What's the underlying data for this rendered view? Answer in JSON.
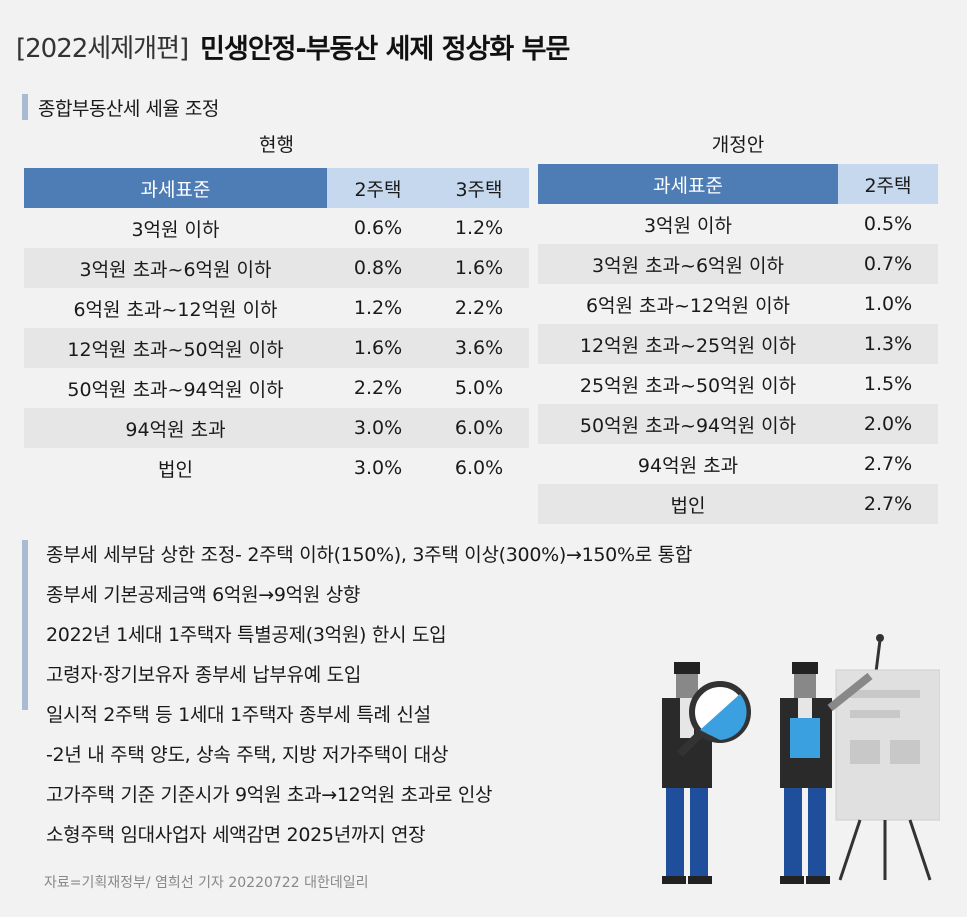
{
  "header": {
    "tag": "[2022세제개편]",
    "title": "민생안정-부동산 세제 정상화 부문"
  },
  "section": {
    "label": "종합부동산세 세율 조정"
  },
  "current_table": {
    "caption": "현행",
    "headers": [
      "과세표준",
      "2주택",
      "3주택"
    ],
    "rows": [
      [
        "3억원 이하",
        "0.6%",
        "1.2%"
      ],
      [
        "3억원 초과~6억원 이하",
        "0.8%",
        "1.6%"
      ],
      [
        "6억원 초과~12억원 이하",
        "1.2%",
        "2.2%"
      ],
      [
        "12억원 초과~50억원 이하",
        "1.6%",
        "3.6%"
      ],
      [
        "50억원 초과~94억원 이하",
        "2.2%",
        "5.0%"
      ],
      [
        "94억원 초과",
        "3.0%",
        "6.0%"
      ],
      [
        "법인",
        "3.0%",
        "6.0%"
      ]
    ]
  },
  "proposed_table": {
    "caption": "개정안",
    "headers": [
      "과세표준",
      "2주택"
    ],
    "rows": [
      [
        "3억원 이하",
        "0.5%"
      ],
      [
        "3억원 초과~6억원 이하",
        "0.7%"
      ],
      [
        "6억원 초과~12억원 이하",
        "1.0%"
      ],
      [
        "12억원 초과~25억원 이하",
        "1.3%"
      ],
      [
        "25억원 초과~50억원 이하",
        "1.5%"
      ],
      [
        "50억원 초과~94억원 이하",
        "2.0%"
      ],
      [
        "94억원 초과",
        "2.7%"
      ],
      [
        "법인",
        "2.7%"
      ]
    ]
  },
  "notes": [
    "종부세 세부담 상한 조정- 2주택 이하(150%), 3주택 이상(300%)→150%로 통합",
    "종부세 기본공제금액 6억원→9억원 상향",
    "2022년 1세대 1주택자 특별공제(3억원) 한시 도입",
    "고령자·장기보유자 종부세 납부유예 도입",
    "일시적 2주택 등 1세대 1주택자 종부세 특례 신설",
    "-2년 내 주택 양도, 상속 주택, 지방 저가주택이 대상",
    "고가주택 기준 기준시가 9억원 초과→12억원 초과로 인상",
    "소형주택 임대사업자 세액감면 2025년까지 연장"
  ],
  "source": "자료=기획재정부/ 염희선 기자 20220722 대한데일리",
  "colors": {
    "header_blue": "#4e7db6",
    "header_light": "#c6d8ee",
    "accent_bar": "#a9bad3",
    "pants_blue": "#1f4f9a"
  }
}
